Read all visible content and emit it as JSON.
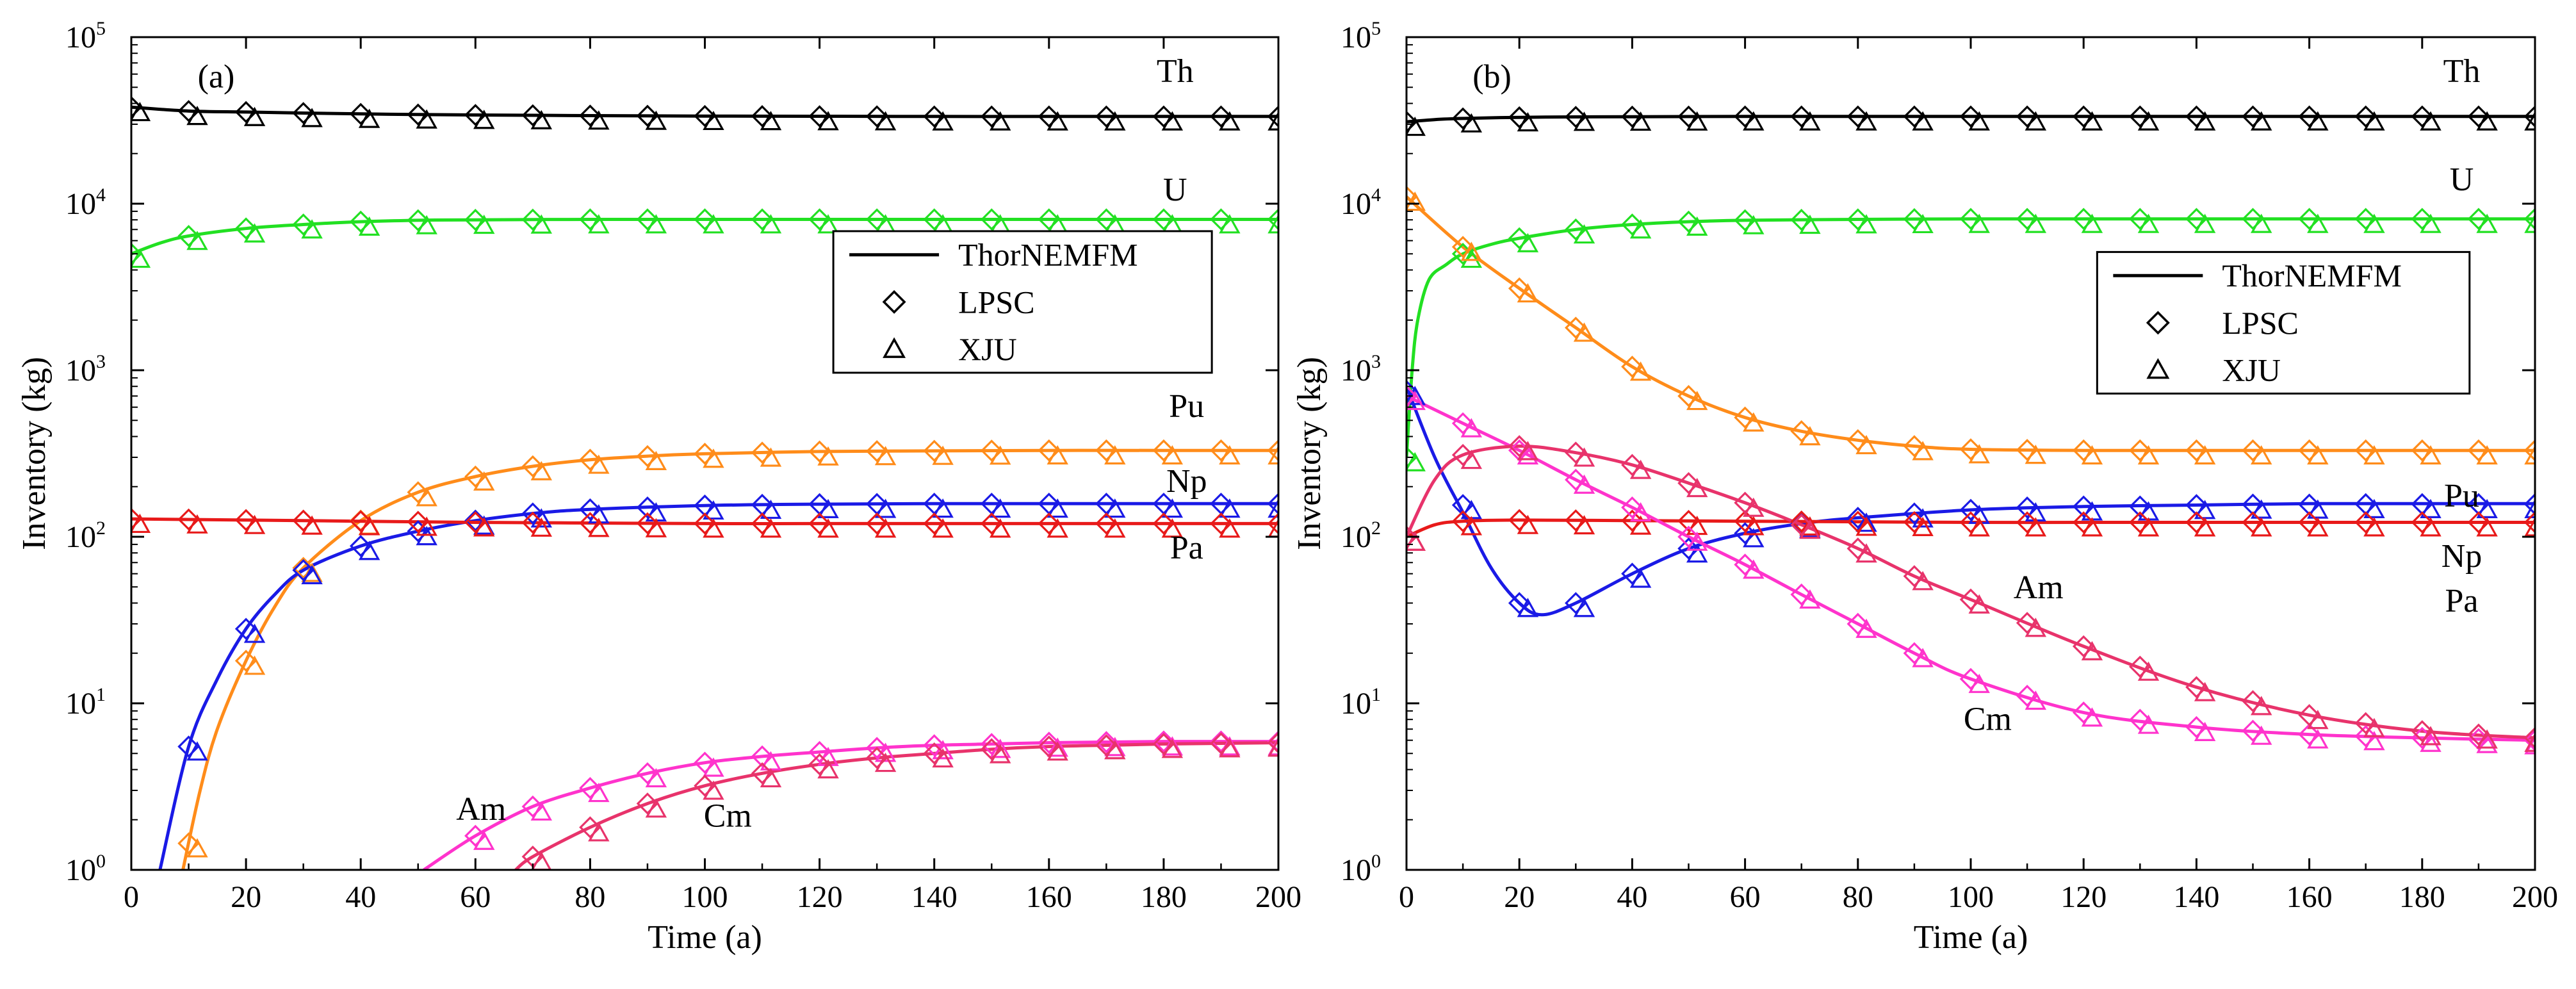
{
  "figure": {
    "panels": [
      "(a)",
      "(b)"
    ]
  },
  "chart_data": [
    {
      "type": "line",
      "panel_label": "(a)",
      "xlabel": "Time (a)",
      "ylabel": "Inventory (kg)",
      "xlim": [
        0,
        200
      ],
      "ylim": [
        1,
        100000
      ],
      "yscale": "log",
      "x_ticks": [
        "0",
        "20",
        "40",
        "60",
        "80",
        "100",
        "120",
        "140",
        "160",
        "180",
        "200"
      ],
      "y_ticks": [
        {
          "base": "10",
          "exp": "0"
        },
        {
          "base": "10",
          "exp": "1"
        },
        {
          "base": "10",
          "exp": "2"
        },
        {
          "base": "10",
          "exp": "3"
        },
        {
          "base": "10",
          "exp": "4"
        },
        {
          "base": "10",
          "exp": "5"
        }
      ],
      "legend": {
        "position": "center-right",
        "entries": [
          "ThorNEMFM",
          "LPSC",
          "XJU"
        ],
        "markers": [
          "line",
          "diamond",
          "triangle"
        ]
      },
      "grid": false,
      "series": [
        {
          "name": "Th",
          "color": "#000000",
          "x": [
            0,
            10,
            20,
            30,
            40,
            50,
            60,
            80,
            100,
            120,
            140,
            160,
            180,
            200
          ],
          "values": [
            38000,
            36000,
            35500,
            35000,
            34600,
            34300,
            34100,
            33800,
            33600,
            33500,
            33400,
            33400,
            33400,
            33400
          ]
        },
        {
          "name": "U",
          "color": "#22e022",
          "x": [
            0,
            5,
            10,
            20,
            30,
            40,
            50,
            60,
            80,
            100,
            120,
            140,
            160,
            180,
            200
          ],
          "values": [
            5000,
            5800,
            6400,
            7100,
            7500,
            7800,
            7950,
            8000,
            8050,
            8050,
            8050,
            8050,
            8050,
            8050,
            8050
          ]
        },
        {
          "name": "Pu",
          "color": "#ff8c1a",
          "x": [
            9,
            12,
            15,
            20,
            25,
            30,
            40,
            50,
            60,
            70,
            80,
            90,
            100,
            120,
            140,
            160,
            180,
            200
          ],
          "values": [
            1,
            3,
            7,
            18,
            38,
            65,
            125,
            185,
            230,
            265,
            290,
            305,
            315,
            325,
            328,
            330,
            330,
            330
          ]
        },
        {
          "name": "Np",
          "color": "#1a1ae6",
          "x": [
            5,
            10,
            15,
            20,
            25,
            30,
            40,
            50,
            60,
            70,
            80,
            100,
            120,
            140,
            160,
            180,
            200
          ],
          "values": [
            1,
            5.5,
            14,
            28,
            45,
            63,
            88,
            108,
            125,
            138,
            146,
            154,
            157,
            158,
            158,
            158,
            158
          ]
        },
        {
          "name": "Pa",
          "color": "#e81a1a",
          "x": [
            0,
            20,
            40,
            60,
            80,
            100,
            120,
            140,
            160,
            180,
            200
          ],
          "values": [
            128,
            126,
            124,
            122,
            121,
            120,
            120,
            120,
            120,
            120,
            120
          ]
        },
        {
          "name": "Am",
          "color": "#ff33cc",
          "x": [
            51,
            60,
            70,
            80,
            90,
            100,
            110,
            120,
            130,
            140,
            150,
            160,
            170,
            180,
            190,
            200
          ],
          "values": [
            1,
            1.6,
            2.4,
            3.1,
            3.8,
            4.4,
            4.8,
            5.1,
            5.4,
            5.6,
            5.7,
            5.8,
            5.85,
            5.9,
            5.9,
            5.9
          ]
        },
        {
          "name": "Cm",
          "color": "#e8336b",
          "x": [
            67,
            70,
            80,
            90,
            100,
            110,
            120,
            130,
            140,
            150,
            160,
            170,
            180,
            190,
            200
          ],
          "values": [
            1,
            1.2,
            1.8,
            2.5,
            3.2,
            3.8,
            4.3,
            4.7,
            5.0,
            5.3,
            5.5,
            5.6,
            5.7,
            5.75,
            5.8
          ]
        }
      ]
    },
    {
      "type": "line",
      "panel_label": "(b)",
      "xlabel": "Time (a)",
      "ylabel": "Inventory (kg)",
      "xlim": [
        0,
        200
      ],
      "ylim": [
        1,
        100000
      ],
      "yscale": "log",
      "x_ticks": [
        "0",
        "20",
        "40",
        "60",
        "80",
        "100",
        "120",
        "140",
        "160",
        "180",
        "200"
      ],
      "y_ticks": [
        {
          "base": "10",
          "exp": "0"
        },
        {
          "base": "10",
          "exp": "1"
        },
        {
          "base": "10",
          "exp": "2"
        },
        {
          "base": "10",
          "exp": "3"
        },
        {
          "base": "10",
          "exp": "4"
        },
        {
          "base": "10",
          "exp": "5"
        }
      ],
      "legend": {
        "position": "center-right",
        "entries": [
          "ThorNEMFM",
          "LPSC",
          "XJU"
        ],
        "markers": [
          "line",
          "diamond",
          "triangle"
        ]
      },
      "grid": false,
      "series": [
        {
          "name": "Th",
          "color": "#000000",
          "x": [
            0,
            5,
            10,
            20,
            30,
            40,
            60,
            80,
            100,
            120,
            140,
            160,
            180,
            200
          ],
          "values": [
            31000,
            32000,
            32500,
            33000,
            33200,
            33300,
            33400,
            33400,
            33400,
            33400,
            33400,
            33400,
            33400,
            33400
          ]
        },
        {
          "name": "U",
          "color": "#22e022",
          "x": [
            0,
            1,
            2,
            4,
            7,
            10,
            15,
            20,
            30,
            40,
            50,
            60,
            80,
            100,
            120,
            140,
            160,
            180,
            200
          ],
          "values": [
            300,
            1000,
            2000,
            3500,
            4300,
            5000,
            5700,
            6200,
            7000,
            7500,
            7800,
            7950,
            8050,
            8100,
            8100,
            8100,
            8100,
            8100,
            8100
          ]
        },
        {
          "name": "Pu",
          "color": "#ff8c1a",
          "x": [
            0,
            10,
            20,
            30,
            40,
            50,
            60,
            70,
            80,
            90,
            100,
            120,
            140,
            160,
            180,
            200
          ],
          "values": [
            11000,
            5500,
            3100,
            1800,
            1050,
            700,
            520,
            430,
            380,
            350,
            335,
            330,
            330,
            330,
            330,
            330
          ]
        },
        {
          "name": "Np",
          "color": "#1a1ae6",
          "x": [
            0,
            5,
            10,
            15,
            20,
            24,
            30,
            40,
            50,
            60,
            70,
            80,
            100,
            120,
            140,
            160,
            180,
            200
          ],
          "values": [
            800,
            300,
            140,
            65,
            40,
            34,
            40,
            60,
            85,
            105,
            120,
            130,
            145,
            152,
            155,
            158,
            158,
            158
          ]
        },
        {
          "name": "Pa",
          "color": "#e81a1a",
          "x": [
            0,
            5,
            10,
            20,
            40,
            60,
            80,
            100,
            120,
            140,
            160,
            180,
            200
          ],
          "values": [
            100,
            118,
            124,
            126,
            125,
            124,
            123,
            122,
            122,
            122,
            122,
            122,
            122
          ]
        },
        {
          "name": "Am",
          "color": "#ff33cc",
          "x": [
            0,
            10,
            20,
            30,
            40,
            50,
            60,
            70,
            80,
            90,
            100,
            120,
            140,
            160,
            180,
            200
          ],
          "values": [
            700,
            480,
            330,
            220,
            150,
            100,
            68,
            45,
            30,
            20,
            14,
            8.8,
            7.2,
            6.5,
            6.2,
            6.0
          ]
        },
        {
          "name": "Cm",
          "color": "#e8336b",
          "x": [
            0,
            5,
            10,
            20,
            30,
            40,
            50,
            60,
            70,
            80,
            90,
            100,
            120,
            140,
            160,
            180,
            200
          ],
          "values": [
            100,
            220,
            310,
            350,
            320,
            270,
            210,
            160,
            118,
            85,
            58,
            42,
            22,
            12.5,
            8.5,
            6.8,
            6.2
          ]
        }
      ],
      "markers": {
        "Np_LPSC": [
          [
            0,
            750
          ],
          [
            10,
            155
          ],
          [
            20,
            40
          ],
          [
            30,
            40
          ],
          [
            40,
            60
          ],
          [
            50,
            85
          ],
          [
            60,
            105
          ],
          [
            70,
            120
          ],
          [
            80,
            130
          ],
          [
            90,
            138
          ],
          [
            100,
            145
          ],
          [
            110,
            150
          ],
          [
            120,
            152
          ],
          [
            130,
            152
          ],
          [
            140,
            155
          ],
          [
            150,
            156
          ],
          [
            160,
            156
          ],
          [
            170,
            157
          ],
          [
            180,
            157
          ],
          [
            190,
            157
          ],
          [
            200,
            157
          ]
        ]
      }
    }
  ]
}
